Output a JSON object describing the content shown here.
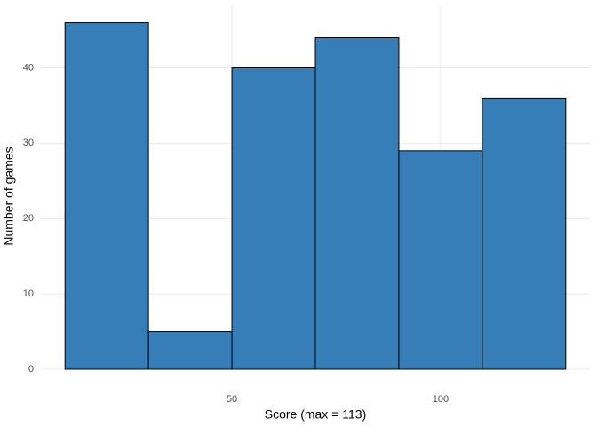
{
  "chart_data": {
    "type": "histogram",
    "x_label": "Score (max = 113)",
    "y_label": "Number of games",
    "bins": [
      10,
      30,
      50,
      70,
      90,
      110,
      130
    ],
    "values": [
      46,
      5,
      40,
      44,
      29,
      36
    ],
    "color": "#377eb8",
    "edge_color": "#000000",
    "xlim": [
      4,
      136
    ],
    "xticks": [
      50,
      100
    ],
    "ylim": [
      0,
      48.3
    ],
    "yticks": [
      0,
      10,
      20,
      30,
      40
    ],
    "grid": true
  }
}
